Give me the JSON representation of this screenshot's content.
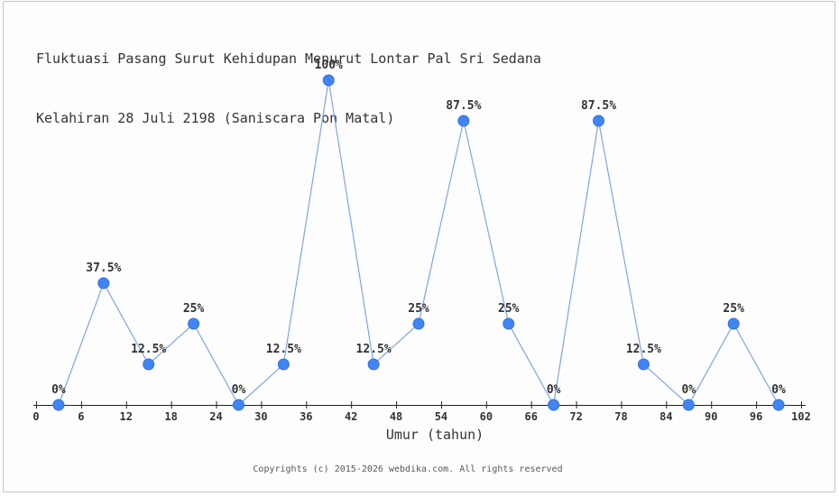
{
  "chart_data": {
    "type": "line",
    "title": "Fluktuasi Pasang Surut Kehidupan Menurut Lontar Pal Sri Sedana Kelahiran 28 Juli 2198 (Saniscara Pon Matal)",
    "title_lines": [
      "Fluktuasi Pasang Surut Kehidupan Menurut Lontar Pal Sri Sedana",
      "Kelahiran 28 Juli 2198 (Saniscara Pon Matal)"
    ],
    "xlabel": "Umur (tahun)",
    "ylabel": "",
    "x": [
      3,
      9,
      15,
      21,
      27,
      33,
      39,
      45,
      51,
      57,
      63,
      69,
      75,
      81,
      87,
      93,
      99
    ],
    "values": [
      0,
      37.5,
      12.5,
      25,
      0,
      12.5,
      100,
      12.5,
      25,
      87.5,
      25,
      0,
      87.5,
      12.5,
      0,
      25,
      0
    ],
    "point_labels": [
      "0%",
      "37.5%",
      "12.5%",
      "25%",
      "0%",
      "12.5%",
      "100%",
      "12.5%",
      "25%",
      "87.5%",
      "25%",
      "0%",
      "87.5%",
      "12.5%",
      "0%",
      "25%",
      "0%"
    ],
    "x_ticks": [
      0,
      6,
      12,
      18,
      24,
      30,
      36,
      42,
      48,
      54,
      60,
      66,
      72,
      78,
      84,
      90,
      96,
      102
    ],
    "xlim": [
      0,
      102
    ],
    "ylim": [
      0,
      100
    ],
    "grid": false,
    "legend": null,
    "colors": {
      "marker": "#4185f4",
      "marker_edge": "#3272e0",
      "line": "#7fa4ee",
      "axis": "#222222",
      "label": "#333333"
    }
  },
  "footer": {
    "copyright": "Copyrights (c) 2015-2026 webdika.com. All rights reserved"
  }
}
